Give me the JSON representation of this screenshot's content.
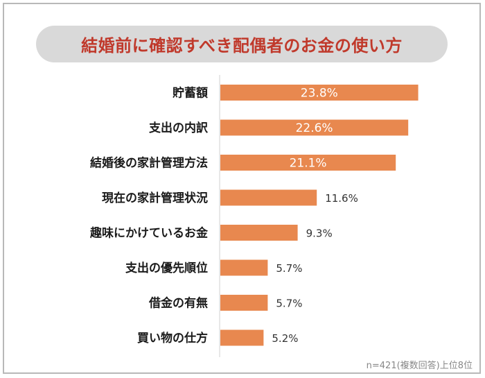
{
  "chart_data": {
    "type": "bar",
    "orientation": "horizontal",
    "title": "結婚前に確認すべき配偶者のお金の使い方",
    "note": "n=421(複数回答)上位8位",
    "categories": [
      "貯蓄額",
      "支出の内訳",
      "結婚後の家計管理方法",
      "現在の家計管理状況",
      "趣味にかけているお金",
      "支出の優先順位",
      "借金の有無",
      "買い物の仕方"
    ],
    "values": [
      23.8,
      22.6,
      21.1,
      11.6,
      9.3,
      5.7,
      5.7,
      5.2
    ],
    "value_labels": [
      "23.8%",
      "22.6%",
      "21.1%",
      "11.6%",
      "9.3%",
      "5.7%",
      "5.7%",
      "5.2%"
    ],
    "unit": "%",
    "xlim": [
      0,
      25
    ],
    "grid": false,
    "legend": "none",
    "colors": {
      "bar": "#e8884f",
      "title": "#c0392b",
      "title_background": "#d9d9d9",
      "axis": "#d0d0d0",
      "label_inside": "#ffffff",
      "label_outside": "#333333",
      "category_text": "#1a1a1a"
    }
  }
}
